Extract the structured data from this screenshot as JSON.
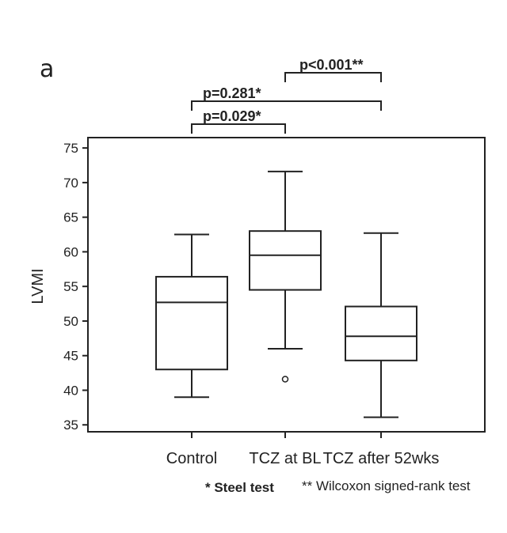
{
  "panel_label": "a",
  "footnotes": {
    "steel": "* Steel test",
    "wilcoxon": "** Wilcoxon signed-rank test"
  },
  "chart_data": {
    "type": "box",
    "ylabel": "LVMI",
    "ylim": [
      34,
      76.5
    ],
    "yticks": [
      35,
      40,
      45,
      50,
      55,
      60,
      65,
      70,
      75
    ],
    "categories": [
      "Control",
      "TCZ at BL",
      "TCZ after 52wks"
    ],
    "boxes": [
      {
        "category": "Control",
        "whisker_low": 39,
        "q1": 43,
        "median": 52.7,
        "q3": 56.4,
        "whisker_high": 62.5,
        "outliers": []
      },
      {
        "category": "TCZ at BL",
        "whisker_low": 46,
        "q1": 54.5,
        "median": 59.5,
        "q3": 63,
        "whisker_high": 71.6,
        "outliers": [
          41.6
        ]
      },
      {
        "category": "TCZ after 52wks",
        "whisker_low": 36.1,
        "q1": 44.3,
        "median": 47.8,
        "q3": 52.1,
        "whisker_high": 62.7,
        "outliers": []
      }
    ],
    "comparisons": [
      {
        "from": 0,
        "to": 1,
        "label": "p=0.029*",
        "level": 0
      },
      {
        "from": 0,
        "to": 2,
        "label": "p=0.281*",
        "level": 1
      },
      {
        "from": 1,
        "to": 2,
        "label": "p<0.001**",
        "level": 2
      }
    ]
  }
}
